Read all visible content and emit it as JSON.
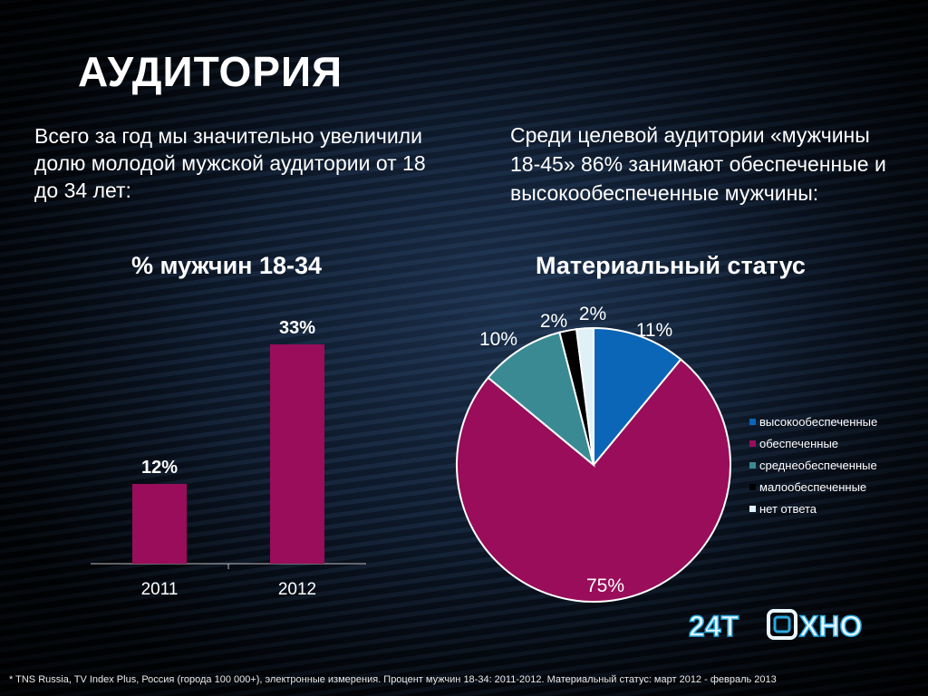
{
  "slide": {
    "title": "АУДИТОРИЯ",
    "left_text": "Всего за год мы значительно увеличили долю молодой мужской аудитории от 18 до 34 лет:",
    "right_text": "Среди целевой аудитории «мужчины 18-45» 86% занимают обеспеченные и высокообеспеченные мужчины:",
    "footnote": "* TNS Russia, TV Index Plus, Россия  (города 100 000+), электронные измерения. Процент мужчин 18-34: 2011-2012. Материальный статус: март 2012 -  февраль 2013",
    "logo": {
      "part1": "24Т",
      "part2": "ХНО"
    }
  },
  "chart_data": [
    {
      "type": "bar",
      "title": "% мужчин 18-34",
      "categories": [
        "2011",
        "2012"
      ],
      "values": [
        12,
        33
      ],
      "data_labels": [
        "12%",
        "33%"
      ],
      "ylim": [
        0,
        33
      ],
      "color": "#990d5a",
      "grid": false
    },
    {
      "type": "pie",
      "title": "Материальный статус",
      "categories": [
        "высокообеспеченные",
        "обеспеченные",
        "среднеобеспеченные",
        "малообеспеченные",
        "нет ответа"
      ],
      "values": [
        11,
        75,
        10,
        2,
        2
      ],
      "data_labels": [
        "11%",
        "75%",
        "10%",
        "2%",
        "2%"
      ],
      "colors": [
        "#0b66b8",
        "#990d5a",
        "#3a8a93",
        "#000000",
        "#dff0f7"
      ],
      "legend": "right"
    }
  ]
}
